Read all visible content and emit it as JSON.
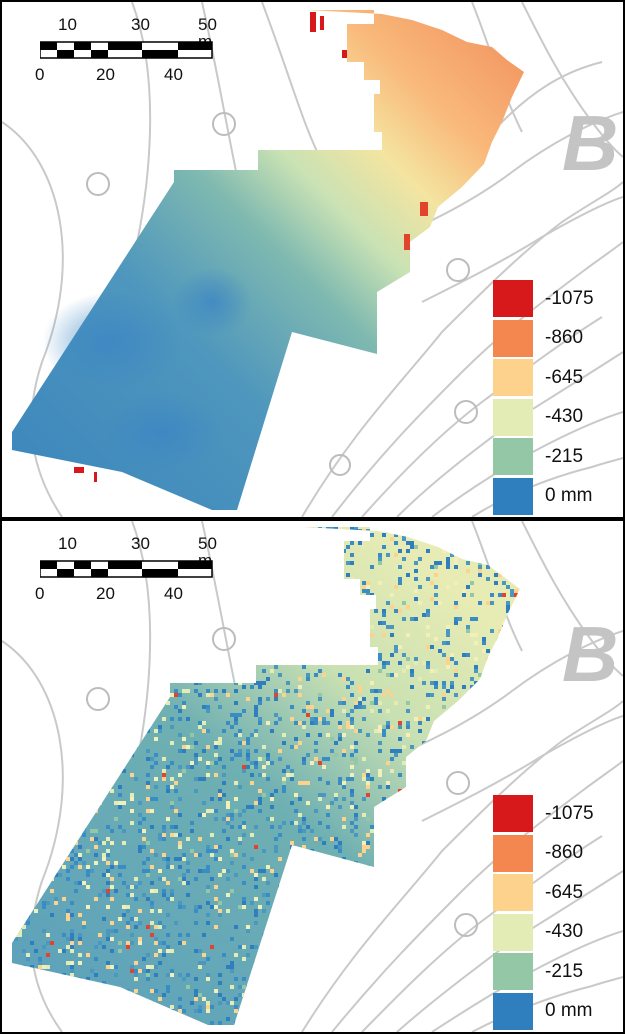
{
  "scale_bar": {
    "top_labels": [
      "10",
      "30",
      "50 m"
    ],
    "bottom_labels": [
      "0",
      "20",
      "40"
    ]
  },
  "legend": {
    "items": [
      {
        "label": "-1075",
        "color": "#d7191c"
      },
      {
        "label": "-860",
        "color": "#f4874f"
      },
      {
        "label": "-645",
        "color": "#fdd28c"
      },
      {
        "label": "-430",
        "color": "#e3ecb4"
      },
      {
        "label": "-215",
        "color": "#93c7a5"
      },
      {
        "label": "0 mm",
        "color": "#2f7fbf"
      }
    ]
  },
  "panels": [
    {
      "id": "top",
      "description_free": true
    },
    {
      "id": "bottom",
      "description_free": true
    }
  ],
  "map_labels": {
    "block_letter": "B"
  }
}
